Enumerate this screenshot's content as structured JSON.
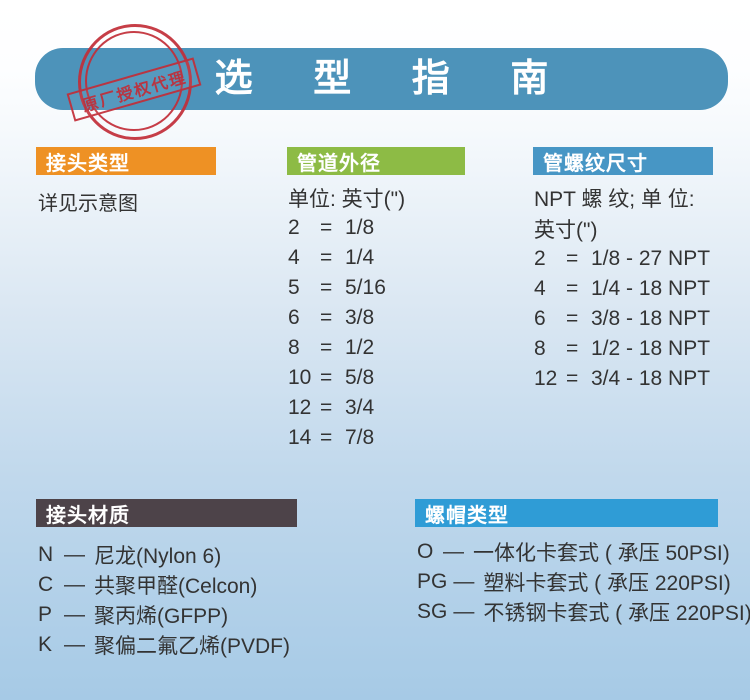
{
  "header": {
    "title": "选 型 指 南",
    "stamp": "原厂授权代理"
  },
  "separators": {
    "equals": "=",
    "dash": "—"
  },
  "colors": {
    "banner_blue": "#4d93ba",
    "orange": "#ee9124",
    "green": "#8dbb45",
    "steel_blue": "#4796c5",
    "dark_brown": "#4d4349",
    "bright_blue": "#2f9cd6",
    "stamp_red": "#c22e38"
  },
  "sections": {
    "connector_type": {
      "title": "接头类型",
      "note": "详见示意图"
    },
    "pipe_od": {
      "title": "管道外径",
      "unit": "单位: 英寸(\")",
      "rows": [
        {
          "code": "2",
          "value": "1/8"
        },
        {
          "code": "4",
          "value": "1/4"
        },
        {
          "code": "5",
          "value": "5/16"
        },
        {
          "code": "6",
          "value": "3/8"
        },
        {
          "code": "8",
          "value": "1/2"
        },
        {
          "code": "10",
          "value": "5/8"
        },
        {
          "code": "12",
          "value": "3/4"
        },
        {
          "code": "14",
          "value": "7/8"
        }
      ]
    },
    "thread_size": {
      "title": "管螺纹尺寸",
      "unit_line1": "NPT 螺 纹; 单 位:",
      "unit_line2": "英寸(\")",
      "rows": [
        {
          "code": "2",
          "value": "1/8 - 27 NPT"
        },
        {
          "code": "4",
          "value": "1/4 - 18 NPT"
        },
        {
          "code": "6",
          "value": "3/8 - 18 NPT"
        },
        {
          "code": "8",
          "value": "1/2 - 18 NPT"
        },
        {
          "code": "12",
          "value": "3/4 - 18 NPT"
        }
      ]
    },
    "material": {
      "title": "接头材质",
      "rows": [
        {
          "code": "N",
          "value": "尼龙(Nylon 6)"
        },
        {
          "code": "C",
          "value": "共聚甲醛(Celcon)"
        },
        {
          "code": "P",
          "value": "聚丙烯(GFPP)"
        },
        {
          "code": "K",
          "value": "聚偏二氟乙烯(PVDF)"
        }
      ]
    },
    "nut_type": {
      "title": "螺帽类型",
      "rows": [
        {
          "code": "O",
          "value": "一体化卡套式 ( 承压 50PSI)"
        },
        {
          "code": "PG",
          "value": "塑料卡套式 ( 承压 220PSI)"
        },
        {
          "code": "SG",
          "value": "不锈钢卡套式 ( 承压 220PSI)"
        }
      ]
    }
  }
}
